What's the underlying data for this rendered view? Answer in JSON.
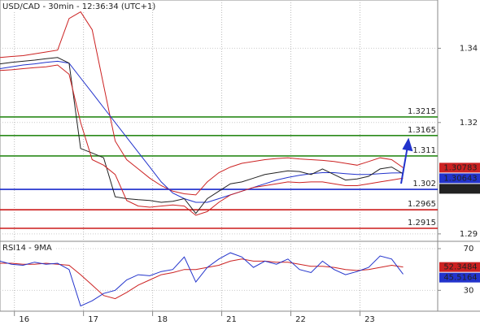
{
  "chart_data": [
    {
      "type": "line",
      "title": "USD/CAD - 30min - 12:36:34 (UTC+1)",
      "x": [
        0,
        1,
        2,
        3,
        4,
        5,
        6,
        7,
        8,
        9,
        10,
        11,
        12,
        13,
        14,
        15,
        16,
        17,
        18,
        19,
        20,
        21,
        22,
        23,
        24,
        25,
        26,
        27,
        28,
        29,
        30,
        31,
        32,
        33,
        34,
        35
      ],
      "xlim": [
        0,
        38
      ],
      "xticks": [
        {
          "value": 1.25,
          "label": "16"
        },
        {
          "value": 7.25,
          "label": "17"
        },
        {
          "value": 13.25,
          "label": "18"
        },
        {
          "value": 19.25,
          "label": "21"
        },
        {
          "value": 25.25,
          "label": "22"
        },
        {
          "value": 31.25,
          "label": "23"
        }
      ],
      "ylim": [
        1.288,
        1.353
      ],
      "yticks": [
        1.34,
        1.32,
        1.29
      ],
      "grid": true,
      "series": [
        {
          "color": "#cc2222",
          "label_last": true,
          "values": [
            1.3375,
            1.3378,
            1.338,
            1.3385,
            1.339,
            1.3395,
            1.348,
            1.3498,
            1.345,
            1.33,
            1.315,
            1.31,
            1.3075,
            1.305,
            1.303,
            1.3015,
            1.3008,
            1.3005,
            1.304,
            1.3065,
            1.308,
            1.309,
            1.3095,
            1.31,
            1.3103,
            1.3105,
            1.3102,
            1.31,
            1.3098,
            1.3095,
            1.309,
            1.3085,
            1.3095,
            1.3105,
            1.31,
            1.30783
          ]
        },
        {
          "color": "#2233cc",
          "label_last": true,
          "values": [
            1.3345,
            1.335,
            1.3355,
            1.3358,
            1.3362,
            1.3365,
            1.336,
            1.332,
            1.328,
            1.324,
            1.32,
            1.316,
            1.312,
            1.308,
            1.304,
            1.301,
            1.2995,
            1.2985,
            1.2985,
            1.2995,
            1.3005,
            1.3015,
            1.3025,
            1.3035,
            1.3045,
            1.3052,
            1.3058,
            1.3062,
            1.3065,
            1.3065,
            1.3062,
            1.306,
            1.306,
            1.3062,
            1.3064,
            1.30643
          ]
        },
        {
          "color": "#222222",
          "label_last": true,
          "values": [
            1.3358,
            1.3362,
            1.3365,
            1.3368,
            1.3372,
            1.3375,
            1.336,
            1.313,
            1.3118,
            1.3105,
            1.3,
            1.2995,
            1.2992,
            1.299,
            1.2985,
            1.2988,
            1.2995,
            1.2955,
            1.2995,
            1.3015,
            1.3035,
            1.304,
            1.305,
            1.306,
            1.3065,
            1.307,
            1.3068,
            1.306,
            1.3075,
            1.306,
            1.3045,
            1.3048,
            1.3055,
            1.3075,
            1.308,
            1.30618
          ]
        },
        {
          "color": "#cc2222",
          "label_last": false,
          "values": [
            1.334,
            1.3342,
            1.3345,
            1.3348,
            1.335,
            1.3355,
            1.333,
            1.32,
            1.31,
            1.3085,
            1.306,
            1.299,
            1.2975,
            1.2972,
            1.2975,
            1.2978,
            1.2975,
            1.295,
            1.296,
            1.2985,
            1.3005,
            1.3015,
            1.3025,
            1.303,
            1.3035,
            1.304,
            1.3038,
            1.304,
            1.304,
            1.3035,
            1.303,
            1.303,
            1.3035,
            1.304,
            1.3045,
            1.305
          ]
        }
      ],
      "levels": [
        {
          "value": 1.3215,
          "color": "#2a8a1a"
        },
        {
          "value": 1.3165,
          "color": "#2a8a1a"
        },
        {
          "value": 1.311,
          "color": "#2a8a1a"
        },
        {
          "value": 1.302,
          "color": "#1a2acc"
        },
        {
          "value": 1.2965,
          "color": "#cc1a1a"
        },
        {
          "value": 1.2915,
          "color": "#cc1a1a"
        }
      ]
    },
    {
      "type": "line",
      "title": "RSI14 - 9MA",
      "ylim": [
        10,
        77
      ],
      "yticks": [
        70,
        30
      ],
      "grid": true,
      "series": [
        {
          "color": "#cc2222",
          "label_last": true,
          "values": [
            56,
            56,
            55,
            55,
            56,
            55,
            54,
            45,
            35,
            25,
            22,
            28,
            35,
            40,
            45,
            47,
            50,
            50,
            52,
            54,
            58,
            60,
            58,
            58,
            57,
            57,
            55,
            53,
            53,
            52,
            50,
            49,
            50,
            52,
            54,
            52.3484
          ]
        },
        {
          "color": "#2233cc",
          "label_last": true,
          "values": [
            58,
            55,
            54,
            57,
            55,
            56,
            50,
            15,
            20,
            27,
            30,
            40,
            45,
            44,
            48,
            50,
            62,
            38,
            52,
            60,
            66,
            62,
            52,
            58,
            55,
            60,
            50,
            47,
            58,
            50,
            45,
            48,
            52,
            63,
            60,
            45.5164
          ]
        }
      ]
    }
  ]
}
